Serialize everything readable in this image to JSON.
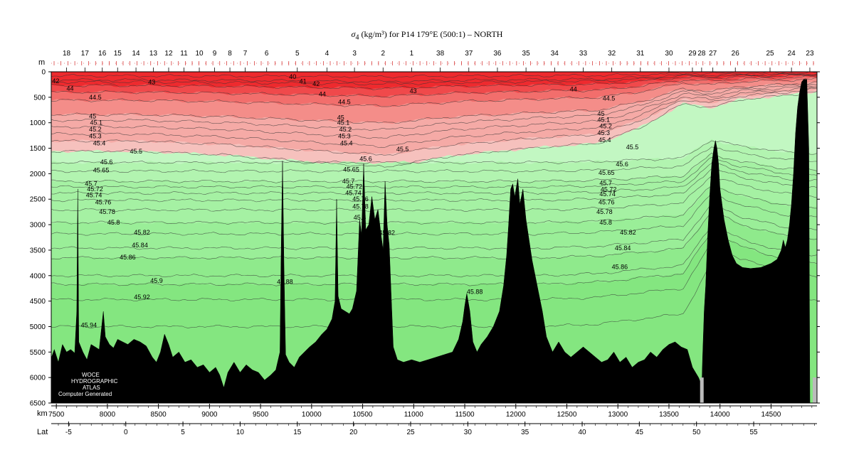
{
  "chart_data": {
    "type": "heatmap",
    "title_symbol": "σ",
    "title_subscript": "4",
    "title_rest": " (kg/m³) for P14 179°E (500:1) – NORTH",
    "depth_unit_label": "m",
    "distance_unit_label": "km",
    "latitude_label": "Lat",
    "xlim_km": [
      7450,
      14950
    ],
    "ylim_m": [
      0,
      6500
    ],
    "depth_ticks": [
      0,
      500,
      1000,
      1500,
      2000,
      2500,
      3000,
      3500,
      4000,
      4500,
      5000,
      5500,
      6000,
      6500
    ],
    "km_ticks": [
      7500,
      8000,
      8500,
      9000,
      9500,
      10000,
      10500,
      11000,
      11500,
      12000,
      12500,
      13000,
      13500,
      14000,
      14500
    ],
    "lat_ticks": [
      {
        "label": "-5",
        "km": 7620
      },
      {
        "label": "0",
        "km": 8180
      },
      {
        "label": "5",
        "km": 8740
      },
      {
        "label": "10",
        "km": 9300
      },
      {
        "label": "15",
        "km": 9860
      },
      {
        "label": "20",
        "km": 10410
      },
      {
        "label": "25",
        "km": 10970
      },
      {
        "label": "30",
        "km": 11530
      },
      {
        "label": "35",
        "km": 12090
      },
      {
        "label": "40",
        "km": 12650
      },
      {
        "label": "45",
        "km": 13210
      },
      {
        "label": "50",
        "km": 13770
      },
      {
        "label": "55",
        "km": 14330
      }
    ],
    "station_km": [
      7600,
      7780,
      7950,
      8100,
      8280,
      8450,
      8600,
      8750,
      8900,
      9050,
      9200,
      9350,
      9560,
      9860,
      10150,
      10420,
      10700,
      10980,
      11260,
      11540,
      11820,
      12100,
      12380,
      12660,
      12940,
      13220,
      13500,
      13730,
      13820,
      13930,
      14150,
      14490,
      14700,
      14880
    ],
    "station_labels": [
      "18",
      "17",
      "16",
      "15",
      "14",
      "13",
      "12",
      "11",
      "10",
      "9",
      "8",
      "7",
      "6",
      "5",
      "4",
      "3",
      "2",
      "1",
      "38",
      "37",
      "36",
      "35",
      "34",
      "33",
      "32",
      "31",
      "30",
      "29",
      "28",
      "27",
      "26",
      "25",
      "24",
      "23"
    ],
    "color_bands": [
      {
        "range": "< 43",
        "color": "#ee2a2e"
      },
      {
        "range": "43–44",
        "color": "#f0494b"
      },
      {
        "range": "44–44.5",
        "color": "#f26e6c"
      },
      {
        "range": "44.5–45",
        "color": "#f48d89"
      },
      {
        "range": "45–45.4",
        "color": "#f5aaa6"
      },
      {
        "range": "45.4–45.5",
        "color": "#f6c1bd"
      },
      {
        "range": "45.5–45.6",
        "color": "#c2f7c2"
      },
      {
        "range": "45.6–45.7",
        "color": "#b2f4b0"
      },
      {
        "range": "45.7–45.8",
        "color": "#a5f1a3"
      },
      {
        "range": "45.8–45.86",
        "color": "#9aee98"
      },
      {
        "range": "45.86–45.9",
        "color": "#8fea8c"
      },
      {
        "range": "> 45.9",
        "color": "#84e680"
      }
    ],
    "isopycnals": [
      {
        "value": "40",
        "mean_depth_m": 80
      },
      {
        "value": "41",
        "mean_depth_m": 160
      },
      {
        "value": "42",
        "mean_depth_m": 200
      },
      {
        "value": "43",
        "mean_depth_m": 270
      },
      {
        "value": "44",
        "mean_depth_m": 400
      },
      {
        "value": "44.5",
        "mean_depth_m": 560
      },
      {
        "value": "45",
        "mean_depth_m": 840
      },
      {
        "value": "45.1",
        "mean_depth_m": 950
      },
      {
        "value": "45.2",
        "mean_depth_m": 1080
      },
      {
        "value": "45.3",
        "mean_depth_m": 1220
      },
      {
        "value": "45.4",
        "mean_depth_m": 1360
      },
      {
        "value": "45.5",
        "mean_depth_m": 1560
      },
      {
        "value": "45.6",
        "mean_depth_m": 1780
      },
      {
        "value": "45.65",
        "mean_depth_m": 1950
      },
      {
        "value": "45.7",
        "mean_depth_m": 2150
      },
      {
        "value": "45.72",
        "mean_depth_m": 2260
      },
      {
        "value": "45.74",
        "mean_depth_m": 2380
      },
      {
        "value": "45.76",
        "mean_depth_m": 2520
      },
      {
        "value": "45.78",
        "mean_depth_m": 2710
      },
      {
        "value": "45.8",
        "mean_depth_m": 2960
      },
      {
        "value": "45.82",
        "mean_depth_m": 3180
      },
      {
        "value": "45.84",
        "mean_depth_m": 3460
      },
      {
        "value": "45.86",
        "mean_depth_m": 3650
      },
      {
        "value": "45.88",
        "mean_depth_m": 4000
      },
      {
        "value": "45.9",
        "mean_depth_m": 4170
      },
      {
        "value": "45.92",
        "mean_depth_m": 4470
      },
      {
        "value": "45.94",
        "mean_depth_m": 5000
      }
    ],
    "contour_labels": [
      {
        "text": "42",
        "km": 7460,
        "depth": 180
      },
      {
        "text": "44",
        "km": 7600,
        "depth": 330
      },
      {
        "text": "44.5",
        "km": 7820,
        "depth": 500
      },
      {
        "text": "43",
        "km": 8400,
        "depth": 200
      },
      {
        "text": "40",
        "km": 9780,
        "depth": 100
      },
      {
        "text": "41",
        "km": 9880,
        "depth": 190
      },
      {
        "text": "42",
        "km": 10010,
        "depth": 240
      },
      {
        "text": "44",
        "km": 10070,
        "depth": 440
      },
      {
        "text": "44.5",
        "km": 10260,
        "depth": 590
      },
      {
        "text": "43",
        "km": 10960,
        "depth": 380
      },
      {
        "text": "44",
        "km": 12530,
        "depth": 340
      },
      {
        "text": "44.5",
        "km": 12850,
        "depth": 520
      },
      {
        "text": "45",
        "km": 7820,
        "depth": 870
      },
      {
        "text": "45.1",
        "km": 7830,
        "depth": 1000
      },
      {
        "text": "45.2",
        "km": 7820,
        "depth": 1130
      },
      {
        "text": "45.3",
        "km": 7820,
        "depth": 1260
      },
      {
        "text": "45.4",
        "km": 7860,
        "depth": 1400
      },
      {
        "text": "45.5",
        "km": 8220,
        "depth": 1560
      },
      {
        "text": "45.6",
        "km": 7930,
        "depth": 1770
      },
      {
        "text": "45.65",
        "km": 7860,
        "depth": 1930
      },
      {
        "text": "45.7",
        "km": 7780,
        "depth": 2200
      },
      {
        "text": "45.72",
        "km": 7800,
        "depth": 2300
      },
      {
        "text": "45.74",
        "km": 7790,
        "depth": 2420
      },
      {
        "text": "45.76",
        "km": 7880,
        "depth": 2560
      },
      {
        "text": "45.78",
        "km": 7920,
        "depth": 2750
      },
      {
        "text": "45.8",
        "km": 8000,
        "depth": 2960
      },
      {
        "text": "45.82",
        "km": 8260,
        "depth": 3150
      },
      {
        "text": "45.84",
        "km": 8240,
        "depth": 3400
      },
      {
        "text": "45.86",
        "km": 8120,
        "depth": 3640
      },
      {
        "text": "45.9",
        "km": 8420,
        "depth": 4100
      },
      {
        "text": "45.92",
        "km": 8260,
        "depth": 4420
      },
      {
        "text": "45.94",
        "km": 7740,
        "depth": 4970
      },
      {
        "text": "45",
        "km": 10250,
        "depth": 900
      },
      {
        "text": "45.1",
        "km": 10250,
        "depth": 1000
      },
      {
        "text": "45.2",
        "km": 10270,
        "depth": 1130
      },
      {
        "text": "45.3",
        "km": 10260,
        "depth": 1260
      },
      {
        "text": "45.4",
        "km": 10280,
        "depth": 1400
      },
      {
        "text": "45.5",
        "km": 10830,
        "depth": 1520
      },
      {
        "text": "45.6",
        "km": 10470,
        "depth": 1710
      },
      {
        "text": "45.65",
        "km": 10310,
        "depth": 1920
      },
      {
        "text": "45.7",
        "km": 10300,
        "depth": 2150
      },
      {
        "text": "45.72",
        "km": 10340,
        "depth": 2250
      },
      {
        "text": "45.74",
        "km": 10330,
        "depth": 2380
      },
      {
        "text": "45.76",
        "km": 10400,
        "depth": 2500
      },
      {
        "text": "45.78",
        "km": 10400,
        "depth": 2640
      },
      {
        "text": "45.8",
        "km": 10410,
        "depth": 2860
      },
      {
        "text": "45.82",
        "km": 10660,
        "depth": 3160
      },
      {
        "text": "45.88",
        "km": 9660,
        "depth": 4120
      },
      {
        "text": "45.88",
        "km": 11520,
        "depth": 4320
      },
      {
        "text": "45",
        "km": 12800,
        "depth": 820
      },
      {
        "text": "45.1",
        "km": 12800,
        "depth": 940
      },
      {
        "text": "45.2",
        "km": 12820,
        "depth": 1070
      },
      {
        "text": "45.3",
        "km": 12800,
        "depth": 1200
      },
      {
        "text": "45.4",
        "km": 12810,
        "depth": 1340
      },
      {
        "text": "45.5",
        "km": 13080,
        "depth": 1480
      },
      {
        "text": "45.6",
        "km": 12980,
        "depth": 1810
      },
      {
        "text": "45.65",
        "km": 12810,
        "depth": 1980
      },
      {
        "text": "45.7",
        "km": 12820,
        "depth": 2180
      },
      {
        "text": "45.72",
        "km": 12830,
        "depth": 2310
      },
      {
        "text": "45.74",
        "km": 12820,
        "depth": 2400
      },
      {
        "text": "45.76",
        "km": 12810,
        "depth": 2560
      },
      {
        "text": "45.78",
        "km": 12790,
        "depth": 2750
      },
      {
        "text": "45.8",
        "km": 12820,
        "depth": 2960
      },
      {
        "text": "45.82",
        "km": 13020,
        "depth": 3150
      },
      {
        "text": "45.84",
        "km": 12970,
        "depth": 3460
      },
      {
        "text": "45.86",
        "km": 12940,
        "depth": 3830
      }
    ],
    "bathymetry_m": [
      [
        7450,
        6500
      ],
      [
        7450,
        5620
      ],
      [
        7480,
        5450
      ],
      [
        7520,
        5700
      ],
      [
        7560,
        5350
      ],
      [
        7600,
        5500
      ],
      [
        7640,
        5450
      ],
      [
        7680,
        5520
      ],
      [
        7700,
        4700
      ],
      [
        7710,
        2300
      ],
      [
        7720,
        5300
      ],
      [
        7760,
        5500
      ],
      [
        7800,
        5650
      ],
      [
        7840,
        5350
      ],
      [
        7880,
        5400
      ],
      [
        7920,
        5450
      ],
      [
        7960,
        4700
      ],
      [
        7980,
        5200
      ],
      [
        8020,
        5350
      ],
      [
        8060,
        5420
      ],
      [
        8100,
        5250
      ],
      [
        8150,
        5300
      ],
      [
        8200,
        5350
      ],
      [
        8260,
        5250
      ],
      [
        8320,
        5300
      ],
      [
        8380,
        5380
      ],
      [
        8440,
        5600
      ],
      [
        8480,
        5700
      ],
      [
        8520,
        5500
      ],
      [
        8560,
        5150
      ],
      [
        8600,
        5350
      ],
      [
        8640,
        5600
      ],
      [
        8700,
        5500
      ],
      [
        8760,
        5700
      ],
      [
        8820,
        5650
      ],
      [
        8880,
        5800
      ],
      [
        8940,
        5750
      ],
      [
        9000,
        5900
      ],
      [
        9060,
        5800
      ],
      [
        9100,
        5950
      ],
      [
        9140,
        6200
      ],
      [
        9180,
        5900
      ],
      [
        9240,
        5700
      ],
      [
        9300,
        5900
      ],
      [
        9360,
        5750
      ],
      [
        9420,
        5850
      ],
      [
        9480,
        5900
      ],
      [
        9540,
        6050
      ],
      [
        9600,
        5950
      ],
      [
        9650,
        5850
      ],
      [
        9690,
        5500
      ],
      [
        9700,
        3800
      ],
      [
        9715,
        1750
      ],
      [
        9730,
        3900
      ],
      [
        9745,
        5550
      ],
      [
        9780,
        5700
      ],
      [
        9830,
        5800
      ],
      [
        9880,
        5600
      ],
      [
        9930,
        5500
      ],
      [
        9980,
        5400
      ],
      [
        10040,
        5300
      ],
      [
        10100,
        5150
      ],
      [
        10150,
        5050
      ],
      [
        10200,
        4850
      ],
      [
        10230,
        4500
      ],
      [
        10245,
        2500
      ],
      [
        10260,
        4400
      ],
      [
        10290,
        4650
      ],
      [
        10330,
        4700
      ],
      [
        10370,
        4750
      ],
      [
        10400,
        4650
      ],
      [
        10440,
        4300
      ],
      [
        10470,
        2900
      ],
      [
        10490,
        3200
      ],
      [
        10510,
        1800
      ],
      [
        10530,
        3100
      ],
      [
        10560,
        3000
      ],
      [
        10590,
        2450
      ],
      [
        10620,
        2900
      ],
      [
        10650,
        2700
      ],
      [
        10680,
        3200
      ],
      [
        10700,
        3500
      ],
      [
        10720,
        2150
      ],
      [
        10740,
        3000
      ],
      [
        10760,
        3400
      ],
      [
        10780,
        4400
      ],
      [
        10800,
        5400
      ],
      [
        10840,
        5650
      ],
      [
        10900,
        5700
      ],
      [
        10980,
        5650
      ],
      [
        11060,
        5700
      ],
      [
        11140,
        5650
      ],
      [
        11220,
        5600
      ],
      [
        11300,
        5550
      ],
      [
        11380,
        5500
      ],
      [
        11440,
        5250
      ],
      [
        11480,
        4900
      ],
      [
        11500,
        4600
      ],
      [
        11520,
        4350
      ],
      [
        11550,
        4700
      ],
      [
        11580,
        5300
      ],
      [
        11620,
        5500
      ],
      [
        11660,
        5350
      ],
      [
        11720,
        5200
      ],
      [
        11780,
        5000
      ],
      [
        11840,
        4700
      ],
      [
        11880,
        4200
      ],
      [
        11910,
        3600
      ],
      [
        11930,
        3000
      ],
      [
        11950,
        2300
      ],
      [
        11970,
        2200
      ],
      [
        11990,
        2450
      ],
      [
        12020,
        2100
      ],
      [
        12040,
        2600
      ],
      [
        12070,
        2300
      ],
      [
        12100,
        2900
      ],
      [
        12130,
        3300
      ],
      [
        12160,
        3700
      ],
      [
        12190,
        4000
      ],
      [
        12220,
        4300
      ],
      [
        12260,
        4700
      ],
      [
        12300,
        5200
      ],
      [
        12360,
        5500
      ],
      [
        12420,
        5300
      ],
      [
        12480,
        5500
      ],
      [
        12540,
        5600
      ],
      [
        12600,
        5500
      ],
      [
        12660,
        5400
      ],
      [
        12720,
        5500
      ],
      [
        12780,
        5600
      ],
      [
        12840,
        5700
      ],
      [
        12900,
        5650
      ],
      [
        12960,
        5500
      ],
      [
        13020,
        5700
      ],
      [
        13080,
        5600
      ],
      [
        13140,
        5800
      ],
      [
        13200,
        5700
      ],
      [
        13260,
        5650
      ],
      [
        13320,
        5500
      ],
      [
        13380,
        5600
      ],
      [
        13440,
        5450
      ],
      [
        13500,
        5350
      ],
      [
        13560,
        5300
      ],
      [
        13620,
        5400
      ],
      [
        13680,
        5450
      ],
      [
        13730,
        5800
      ],
      [
        13760,
        5900
      ],
      [
        13790,
        6000
      ],
      [
        13810,
        6100
      ],
      [
        13820,
        6300
      ],
      [
        13830,
        5600
      ],
      [
        13845,
        4700
      ],
      [
        13860,
        4200
      ],
      [
        13880,
        3200
      ],
      [
        13900,
        2400
      ],
      [
        13920,
        1800
      ],
      [
        13940,
        1500
      ],
      [
        13955,
        1350
      ],
      [
        13970,
        1500
      ],
      [
        13985,
        1800
      ],
      [
        14000,
        2300
      ],
      [
        14040,
        2900
      ],
      [
        14080,
        3300
      ],
      [
        14120,
        3600
      ],
      [
        14160,
        3760
      ],
      [
        14220,
        3840
      ],
      [
        14300,
        3860
      ],
      [
        14400,
        3840
      ],
      [
        14500,
        3760
      ],
      [
        14560,
        3680
      ],
      [
        14600,
        3500
      ],
      [
        14620,
        3300
      ],
      [
        14640,
        3450
      ],
      [
        14660,
        3300
      ],
      [
        14680,
        3000
      ],
      [
        14700,
        2600
      ],
      [
        14720,
        2000
      ],
      [
        14740,
        1200
      ],
      [
        14760,
        700
      ],
      [
        14780,
        400
      ],
      [
        14800,
        200
      ],
      [
        14820,
        150
      ],
      [
        14850,
        150
      ],
      [
        14870,
        1500
      ],
      [
        14880,
        6500
      ]
    ],
    "credit_line1": "WOCE",
    "credit_line2": "HYDROGRAPHIC",
    "credit_line3": "ATLAS",
    "credit_line4": "Computer Generated"
  }
}
